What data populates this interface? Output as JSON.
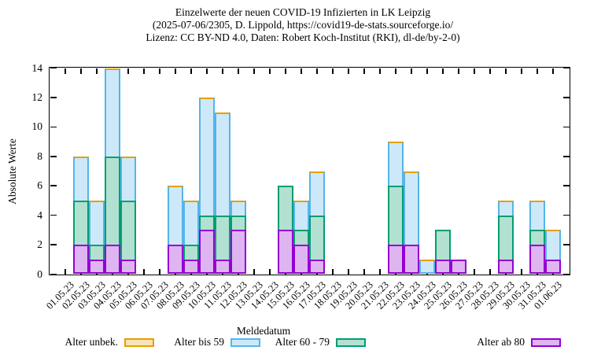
{
  "chart_data": {
    "type": "stacked-bar",
    "title_lines": [
      "Einzelwerte der neuen COVID-19 Infizierten in LK Leipzig",
      "(2025-07-06/2305, D. Lippold, https://covid19-de-stats.sourceforge.io/",
      "Lizenz: CC BY-ND 4.0, Daten: Robert Koch-Institut (RKI), dl-de/by-2-0)"
    ],
    "xlabel": "Meldedatum",
    "ylabel": "Absolute Werte",
    "ylim": [
      0,
      14
    ],
    "yticks": [
      0,
      2,
      4,
      6,
      8,
      10,
      12,
      14
    ],
    "grid": false,
    "legend_position": "bottom",
    "x_categories": [
      "01.05.23",
      "02.05.23",
      "03.05.23",
      "04.05.23",
      "05.05.23",
      "06.05.23",
      "07.05.23",
      "08.05.23",
      "09.05.23",
      "10.05.23",
      "11.05.23",
      "12.05.23",
      "13.05.23",
      "14.05.23",
      "15.05.23",
      "16.05.23",
      "17.05.23",
      "18.05.23",
      "19.05.23",
      "20.05.23",
      "21.05.23",
      "22.05.23",
      "23.05.23",
      "24.05.23",
      "25.05.23",
      "26.05.23",
      "27.05.23",
      "28.05.23",
      "29.05.23",
      "30.05.23",
      "31.05.23",
      "01.06.23"
    ],
    "legend": [
      {
        "label": "Alter unbek.",
        "border": "#e69f00",
        "fill": "#f7e3b5"
      },
      {
        "label": "Alter bis 59",
        "border": "#56b4e9",
        "fill": "#cde9f9"
      },
      {
        "label": "Alter 60 - 79",
        "border": "#009e73",
        "fill": "#b2e1d1"
      },
      {
        "label": "Alter ab 80",
        "border": "#9400d3",
        "fill": "#deb4f1"
      }
    ],
    "series_order_bottom_to_top": [
      "Alter ab 80",
      "Alter 60 - 79",
      "Alter bis 59",
      "Alter unbek."
    ],
    "bars": [
      {
        "date": "02.05.23",
        "ab80": 2,
        "a60_79": 3,
        "bis59": 3,
        "unbek": 0
      },
      {
        "date": "03.05.23",
        "ab80": 1,
        "a60_79": 1,
        "bis59": 3,
        "unbek": 0
      },
      {
        "date": "04.05.23",
        "ab80": 2,
        "a60_79": 6,
        "bis59": 6,
        "unbek": 0
      },
      {
        "date": "05.05.23",
        "ab80": 1,
        "a60_79": 4,
        "bis59": 3,
        "unbek": 0
      },
      {
        "date": "08.05.23",
        "ab80": 2,
        "a60_79": 0,
        "bis59": 4,
        "unbek": 0
      },
      {
        "date": "09.05.23",
        "ab80": 1,
        "a60_79": 1,
        "bis59": 3,
        "unbek": 0
      },
      {
        "date": "10.05.23",
        "ab80": 3,
        "a60_79": 1,
        "bis59": 8,
        "unbek": 0
      },
      {
        "date": "11.05.23",
        "ab80": 1,
        "a60_79": 3,
        "bis59": 7,
        "unbek": 0
      },
      {
        "date": "12.05.23",
        "ab80": 3,
        "a60_79": 1,
        "bis59": 1,
        "unbek": 0
      },
      {
        "date": "15.05.23",
        "ab80": 3,
        "a60_79": 3,
        "bis59": 0,
        "unbek": 0
      },
      {
        "date": "16.05.23",
        "ab80": 2,
        "a60_79": 1,
        "bis59": 2,
        "unbek": 0
      },
      {
        "date": "17.05.23",
        "ab80": 1,
        "a60_79": 3,
        "bis59": 3,
        "unbek": 0
      },
      {
        "date": "22.05.23",
        "ab80": 2,
        "a60_79": 4,
        "bis59": 3,
        "unbek": 0
      },
      {
        "date": "23.05.23",
        "ab80": 2,
        "a60_79": 0,
        "bis59": 5,
        "unbek": 0
      },
      {
        "date": "24.05.23",
        "ab80": 0,
        "a60_79": 0,
        "bis59": 1,
        "unbek": 0
      },
      {
        "date": "25.05.23",
        "ab80": 1,
        "a60_79": 2,
        "bis59": 0,
        "unbek": 0
      },
      {
        "date": "26.05.23",
        "ab80": 1,
        "a60_79": 0,
        "bis59": 0,
        "unbek": 0
      },
      {
        "date": "29.05.23",
        "ab80": 1,
        "a60_79": 3,
        "bis59": 1,
        "unbek": 0
      },
      {
        "date": "31.05.23",
        "ab80": 2,
        "a60_79": 1,
        "bis59": 2,
        "unbek": 0
      },
      {
        "date": "01.06.23",
        "ab80": 1,
        "a60_79": 0,
        "bis59": 2,
        "unbek": 0
      }
    ]
  }
}
